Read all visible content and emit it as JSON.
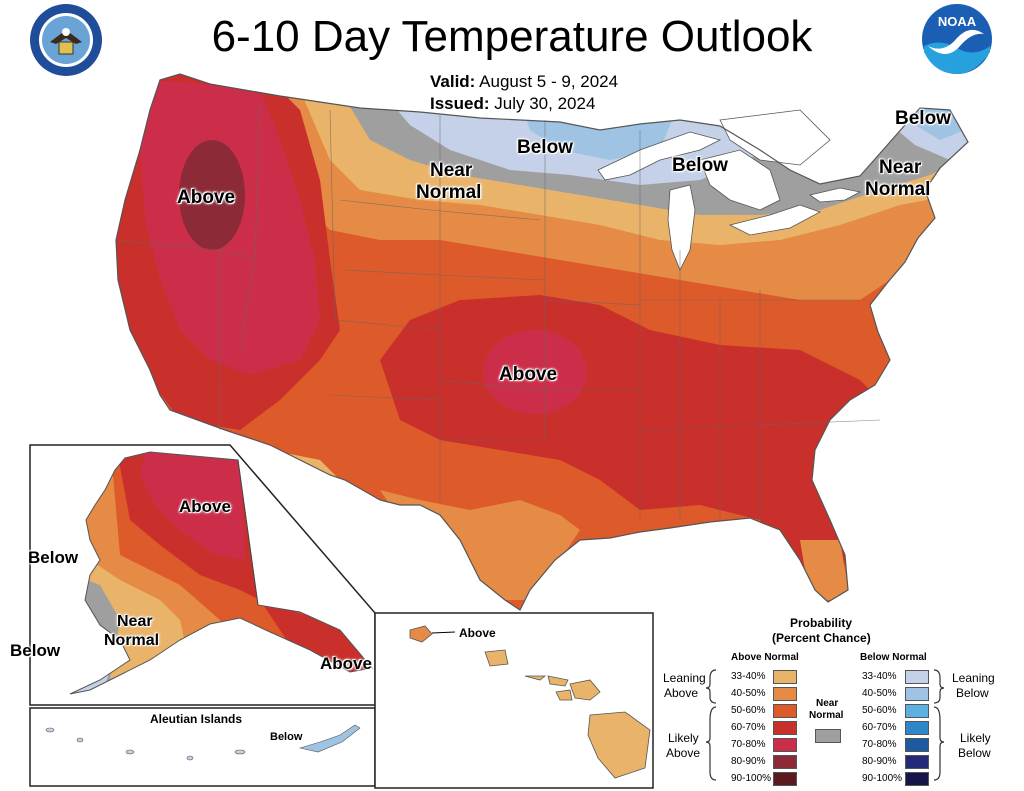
{
  "title": "6-10 Day Temperature Outlook",
  "valid": {
    "label": "Valid:",
    "value": "August 5 - 9, 2024"
  },
  "issued": {
    "label": "Issued:",
    "value": "July 30, 2024"
  },
  "logos": {
    "left": "doc-seal-icon",
    "right": "noaa-logo-icon",
    "right_text": "NOAA"
  },
  "map_labels": {
    "west_above": "Above",
    "central_above": "Above",
    "north_near_line1": "Near",
    "north_near_line2": "Normal",
    "north_below": "Below",
    "lakes_below": "Below",
    "ne_below": "Below",
    "ne_near_line1": "Near",
    "ne_near_line2": "Normal"
  },
  "alaska_labels": {
    "above_north": "Above",
    "below_west": "Below",
    "near_line1": "Near",
    "near_line2": "Normal",
    "below_sw": "Below",
    "above_se": "Above"
  },
  "aleutian": {
    "title": "Aleutian Islands",
    "below": "Below"
  },
  "hawaii": {
    "above": "Above"
  },
  "legend": {
    "title_line1": "Probability",
    "title_line2": "(Percent Chance)",
    "above_header": "Above Normal",
    "below_header": "Below Normal",
    "near_line1": "Near",
    "near_line2": "Normal",
    "leaning_above_1": "Leaning",
    "leaning_above_2": "Above",
    "likely_above_1": "Likely",
    "likely_above_2": "Above",
    "leaning_below_1": "Leaning",
    "leaning_below_2": "Below",
    "likely_below_1": "Likely",
    "likely_below_2": "Below",
    "above": [
      {
        "range": "33-40%",
        "color": "#e9b46a"
      },
      {
        "range": "40-50%",
        "color": "#e58b45"
      },
      {
        "range": "50-60%",
        "color": "#dd5a2b"
      },
      {
        "range": "60-70%",
        "color": "#c9302b"
      },
      {
        "range": "70-80%",
        "color": "#cc2e4a"
      },
      {
        "range": "80-90%",
        "color": "#8d2a38"
      },
      {
        "range": "90-100%",
        "color": "#5a1a20"
      }
    ],
    "below": [
      {
        "range": "33-40%",
        "color": "#c5d1e8"
      },
      {
        "range": "40-50%",
        "color": "#9fc4e3"
      },
      {
        "range": "50-60%",
        "color": "#5eb0e0"
      },
      {
        "range": "60-70%",
        "color": "#2f86c9"
      },
      {
        "range": "70-80%",
        "color": "#1d5aa0"
      },
      {
        "range": "80-90%",
        "color": "#232a78"
      },
      {
        "range": "90-100%",
        "color": "#15154a"
      }
    ],
    "near_color": "#9f9f9f"
  }
}
